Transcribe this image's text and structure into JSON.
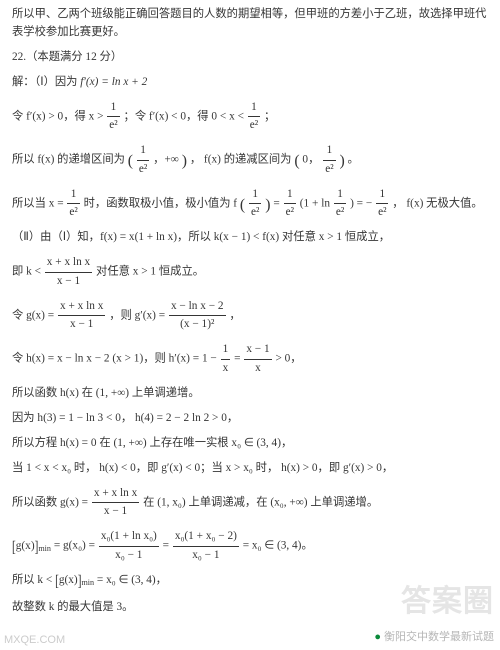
{
  "colors": {
    "text": "#353535",
    "bg": "#ffffff",
    "wm": "rgba(180,180,180,0.35)",
    "wm2": "rgba(120,120,120,0.55)"
  },
  "fontsize_pt": 11.3,
  "l0": "所以甲、乙两个班级能正确回答题目的人数的期望相等，但甲班的方差小于乙班，故选择甲班代表学校参加比赛更好。",
  "l1": "22.（本题满分 12 分）",
  "l2a": "解：（Ⅰ）因为 ",
  "l2b": " f′(x) = ln x + 2",
  "l3a": "令 f′(x) > 0，得 x > ",
  "l3b": "；令 f′(x) < 0，得 0 < x < ",
  "l3c": "；",
  "frac1num": "1",
  "frac1den": "e²",
  "l4a": "所以 f(x) 的递增区间为",
  "l4b": "， f(x) 的递减区间为",
  "l4c": "。",
  "int1": "，+∞",
  "int2a": "0，",
  "l5a": "所以当 x = ",
  "l5b": " 时，函数取极小值，极小值为 f",
  "l5c": " = ",
  "l5d": "(1 + ln",
  "l5e": ") = − ",
  "l5f": "， f(x) 无极大值。",
  "l6": "（Ⅱ）由（Ⅰ）知，f(x) = x(1 + ln x)，所以 k(x − 1) < f(x) 对任意 x > 1 恒成立，",
  "l7a": "即 k < ",
  "l7b": " 对任意 x > 1 恒成立。",
  "gnum": "x + x ln x",
  "gden": "x − 1",
  "l8a": "令 g(x) = ",
  "l8b": "，则 g′(x) = ",
  "l8c": "，",
  "g2num": "x − ln x − 2",
  "g2den": "(x − 1)²",
  "l9a": "令 h(x) = x − ln x − 2 (x > 1)，则 h′(x) = 1 − ",
  "l9b": " = ",
  "l9c": " > 0，",
  "hnum1": "1",
  "hden1": "x",
  "hnum2": "x − 1",
  "hden2": "x",
  "l10": "所以函数 h(x) 在 (1, +∞) 上单调递增。",
  "l11": "因为 h(3) = 1 − ln 3 < 0， h(4) = 2 − 2 ln 2 > 0，",
  "l12": "所以方程 h(x) = 0 在 (1, +∞) 上存在唯一实根 x₀ ∈ (3, 4)，",
  "l13": "当 1 < x < x₀ 时， h(x) < 0，即 g′(x) < 0；当 x > x₀ 时， h(x) > 0，即 g′(x) > 0，",
  "l14a": "所以函数 g(x) = ",
  "l14b": " 在 (1, x₀) 上单调递减，在 (x₀, +∞) 上单调递增。",
  "l15a": "所以 [g(x)]",
  "l15b": " = g(x₀) = ",
  "l15c": " = ",
  "l15d": " = x₀ ∈ (3, 4)。",
  "min": "min",
  "f3num": "x₀(1 + ln x₀)",
  "f3den": "x₀ − 1",
  "f4num": "x₀(1 + x₀ − 2)",
  "f4den": "x₀ − 1",
  "l16": "所以 k < [g(x)]ₘᵢₙ = x₀ ∈ (3, 4)，",
  "l17": "故整数 k 的最大值是 3。",
  "wm": "答案圈",
  "wm2a": "●",
  "wm2b": "衡阳交中数学最新试题",
  "wmbl": "MXQE.COM"
}
